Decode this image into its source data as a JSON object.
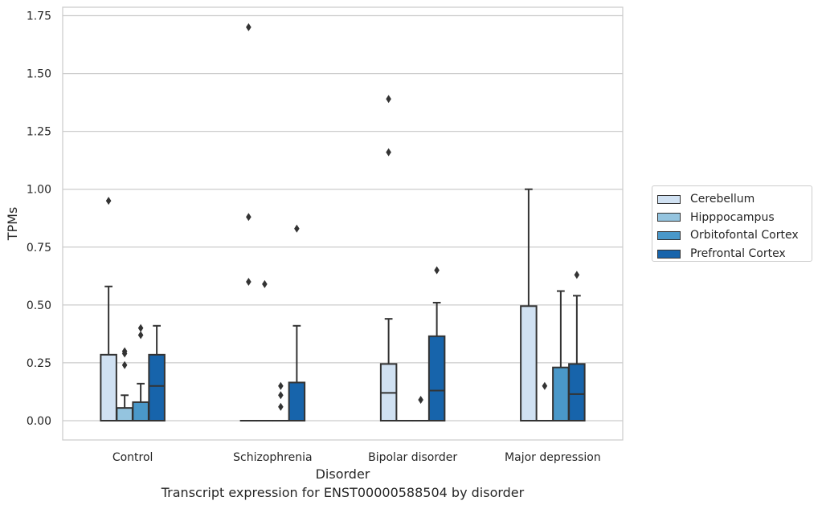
{
  "chart_data": {
    "type": "box",
    "xlabel": "Disorder",
    "ylabel": "TPMs",
    "ylim": [
      -0.085,
      1.79
    ],
    "yticks": [
      0.0,
      0.25,
      0.5,
      0.75,
      1.0,
      1.25,
      1.5,
      1.75
    ],
    "ytick_labels": [
      "0.00",
      "0.25",
      "0.50",
      "0.75",
      "1.00",
      "1.25",
      "1.50",
      "1.75"
    ],
    "grid": "horizontal",
    "legend_position": "right",
    "categories": [
      "Control",
      "Schizophrenia",
      "Bipolar disorder",
      "Major depression"
    ],
    "series": [
      {
        "name": "Cerebellum",
        "color": "#d0e1f2",
        "boxes": [
          {
            "q1": 0.0,
            "median": 0.0,
            "q3": 0.285,
            "whislo": 0.0,
            "whishi": 0.58,
            "fliers": [
              0.95
            ]
          },
          {
            "q1": 0.0,
            "median": 0.0,
            "q3": 0.0,
            "whislo": 0.0,
            "whishi": 0.0,
            "fliers": [
              1.7,
              0.88,
              0.6
            ]
          },
          {
            "q1": 0.0,
            "median": 0.12,
            "q3": 0.245,
            "whislo": 0.0,
            "whishi": 0.44,
            "fliers": [
              1.39,
              1.16
            ]
          },
          {
            "q1": 0.0,
            "median": 0.0,
            "q3": 0.495,
            "whislo": 0.0,
            "whishi": 1.0,
            "fliers": []
          }
        ]
      },
      {
        "name": "Hipppocampus",
        "color": "#94c4df",
        "boxes": [
          {
            "q1": 0.0,
            "median": 0.0,
            "q3": 0.055,
            "whislo": 0.0,
            "whishi": 0.11,
            "fliers": [
              0.3,
              0.29,
              0.24
            ]
          },
          {
            "q1": 0.0,
            "median": 0.0,
            "q3": 0.0,
            "whislo": 0.0,
            "whishi": 0.0,
            "fliers": [
              0.59
            ]
          },
          {
            "q1": 0.0,
            "median": 0.0,
            "q3": 0.0,
            "whislo": 0.0,
            "whishi": 0.0,
            "fliers": []
          },
          {
            "q1": 0.0,
            "median": 0.0,
            "q3": 0.0,
            "whislo": 0.0,
            "whishi": 0.0,
            "fliers": [
              0.15
            ]
          }
        ]
      },
      {
        "name": "Orbitofontal Cortex",
        "color": "#4a98c9",
        "boxes": [
          {
            "q1": 0.0,
            "median": 0.0,
            "q3": 0.08,
            "whislo": 0.0,
            "whishi": 0.16,
            "fliers": [
              0.4,
              0.37
            ]
          },
          {
            "q1": 0.0,
            "median": 0.0,
            "q3": 0.0,
            "whislo": 0.0,
            "whishi": 0.0,
            "fliers": [
              0.15,
              0.11,
              0.06
            ]
          },
          {
            "q1": 0.0,
            "median": 0.0,
            "q3": 0.0,
            "whislo": 0.0,
            "whishi": 0.0,
            "fliers": [
              0.09
            ]
          },
          {
            "q1": 0.0,
            "median": 0.0,
            "q3": 0.23,
            "whislo": 0.0,
            "whishi": 0.56,
            "fliers": []
          }
        ]
      },
      {
        "name": "Prefrontal Cortex",
        "color": "#1764ab",
        "boxes": [
          {
            "q1": 0.0,
            "median": 0.15,
            "q3": 0.285,
            "whislo": 0.0,
            "whishi": 0.41,
            "fliers": []
          },
          {
            "q1": 0.0,
            "median": 0.0,
            "q3": 0.165,
            "whislo": 0.0,
            "whishi": 0.41,
            "fliers": [
              0.83
            ]
          },
          {
            "q1": 0.0,
            "median": 0.13,
            "q3": 0.365,
            "whislo": 0.0,
            "whishi": 0.51,
            "fliers": [
              0.65
            ]
          },
          {
            "q1": 0.0,
            "median": 0.115,
            "q3": 0.245,
            "whislo": 0.0,
            "whishi": 0.54,
            "fliers": [
              0.63
            ]
          }
        ]
      }
    ]
  },
  "caption": "Transcript expression for ENST00000588504 by disorder"
}
